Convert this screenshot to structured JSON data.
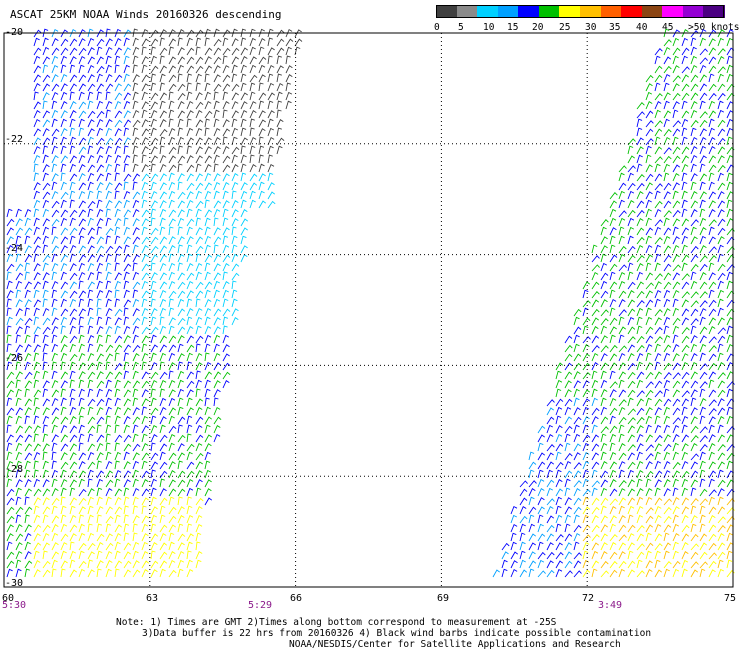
{
  "header": {
    "title": "ASCAT 25KM NOAA Winds 20160326 descending"
  },
  "colorbar": {
    "colors": [
      "#404040",
      "#8a8a8a",
      "#00d0ff",
      "#00a0ff",
      "#0000ff",
      "#00c000",
      "#ffff00",
      "#ffc000",
      "#ff6000",
      "#ff0000",
      "#8b4513",
      "#ff00ff",
      "#9400d3",
      "#4b0082"
    ],
    "labels": [
      "0",
      "5",
      "10",
      "15",
      "20",
      "25",
      "30",
      "35",
      "40",
      "45",
      ">50 knots"
    ]
  },
  "axes": {
    "lat_labels": [
      "-20",
      "-22",
      "-24",
      "-26",
      "-28",
      "-30"
    ],
    "lon_labels": [
      "60",
      "63",
      "66",
      "69",
      "72",
      "75"
    ],
    "time_labels": [
      "5:30",
      "5:29",
      "3:49"
    ]
  },
  "notes": {
    "line1": "Note: 1) Times are GMT 2)Times along bottom correspond to measurement at -25S",
    "line2": "3)Data buffer is 22 hrs from 20160326 4) Black wind barbs indicate possible contamination",
    "line3": "NOAA/NESDIS/Center for Satellite Applications and Research"
  }
}
